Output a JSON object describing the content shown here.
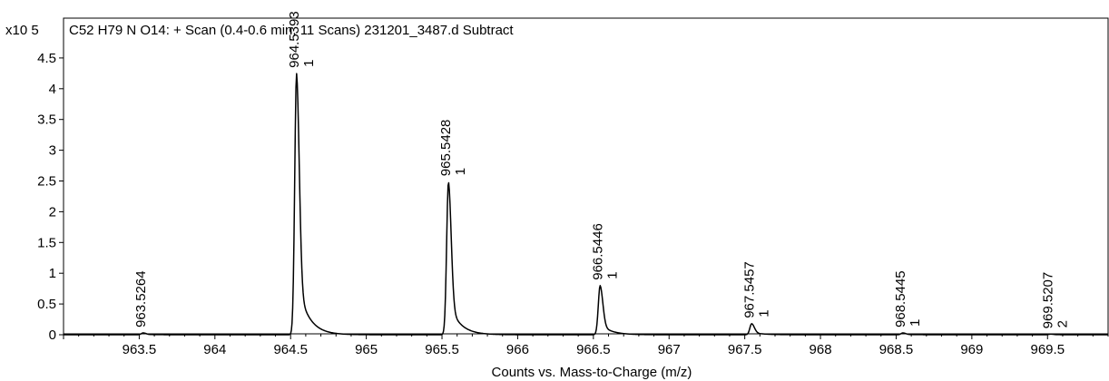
{
  "chart_data": {
    "type": "line",
    "title": "C52 H79 N O14: + Scan (0.4-0.6 min, 11 Scans) 231201_3487.d  Subtract",
    "y_multiplier_label": "x10 5",
    "xlabel": "Counts vs. Mass-to-Charge (m/z)",
    "ylabel": "",
    "xlim": [
      963.0,
      969.9
    ],
    "ylim": [
      0,
      4.9
    ],
    "x_ticks": [
      "963.5",
      "964",
      "964.5",
      "965",
      "965.5",
      "966",
      "966.5",
      "967",
      "967.5",
      "968",
      "968.5",
      "969",
      "969.5"
    ],
    "y_ticks": [
      "0",
      "0.5",
      "1",
      "1.5",
      "2",
      "2.5",
      "3",
      "3.5",
      "4",
      "4.5"
    ],
    "grid": false,
    "legend": "none",
    "line_color": "#000000",
    "peaks": [
      {
        "mz": 963.5264,
        "intensity": 0.03,
        "label": "963.5264",
        "charge": ""
      },
      {
        "mz": 964.5393,
        "intensity": 4.25,
        "label": "964.5393",
        "charge": "1"
      },
      {
        "mz": 965.5428,
        "intensity": 2.49,
        "label": "965.5428",
        "charge": "1"
      },
      {
        "mz": 966.5446,
        "intensity": 0.8,
        "label": "966.5446",
        "charge": "1"
      },
      {
        "mz": 967.5457,
        "intensity": 0.18,
        "label": "967.5457",
        "charge": "1"
      },
      {
        "mz": 968.5445,
        "intensity": 0.03,
        "label": "968.5445",
        "charge": "1"
      },
      {
        "mz": 969.5207,
        "intensity": 0.01,
        "label": "969.5207",
        "charge": "2"
      }
    ]
  }
}
